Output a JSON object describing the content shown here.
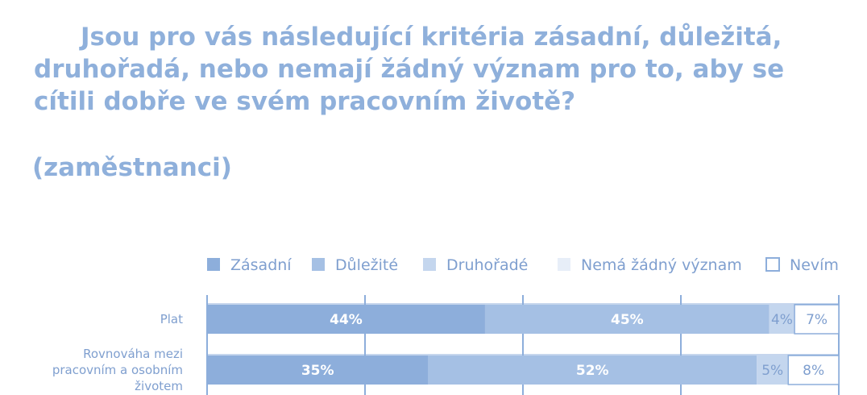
{
  "title": "Jsou pro vás následující kritéria zásadní, důležitá, druhořadá, nebo nemají žádný význam pro to, aby se cítili dobře ve svém pracovním životě?",
  "subtitle": "(zaměstnanci)",
  "colors": {
    "Zásadní": "#8daedb",
    "Důležité": "#a5c0e4",
    "Druhořadé": "#c4d6ee",
    "Nemá žádný význam": "#e7eef8",
    "Nevím": "#ffffff",
    "outline": "#8daedb",
    "label": "#7f9fcf",
    "grid": "#8daedb"
  },
  "chart_data": {
    "type": "bar",
    "orientation": "horizontal",
    "stacked": true,
    "categories": [
      "Plat",
      "Rovnováha mezi pracovním a osobním životem"
    ],
    "series": [
      {
        "name": "Zásadní",
        "values": [
          44,
          35
        ]
      },
      {
        "name": "Důležité",
        "values": [
          45,
          52
        ]
      },
      {
        "name": "Druhořadé",
        "values": [
          4,
          5
        ]
      },
      {
        "name": "Nemá žádný význam",
        "values": [
          0,
          0
        ]
      },
      {
        "name": "Nevím",
        "values": [
          7,
          8
        ]
      }
    ],
    "data_labels": [
      [
        "44%",
        "45%",
        "4%",
        "",
        "7%"
      ],
      [
        "35%",
        "52%",
        "5%",
        "",
        "8%"
      ]
    ],
    "xlim": [
      0,
      100
    ],
    "grid": true,
    "legend": "top"
  }
}
